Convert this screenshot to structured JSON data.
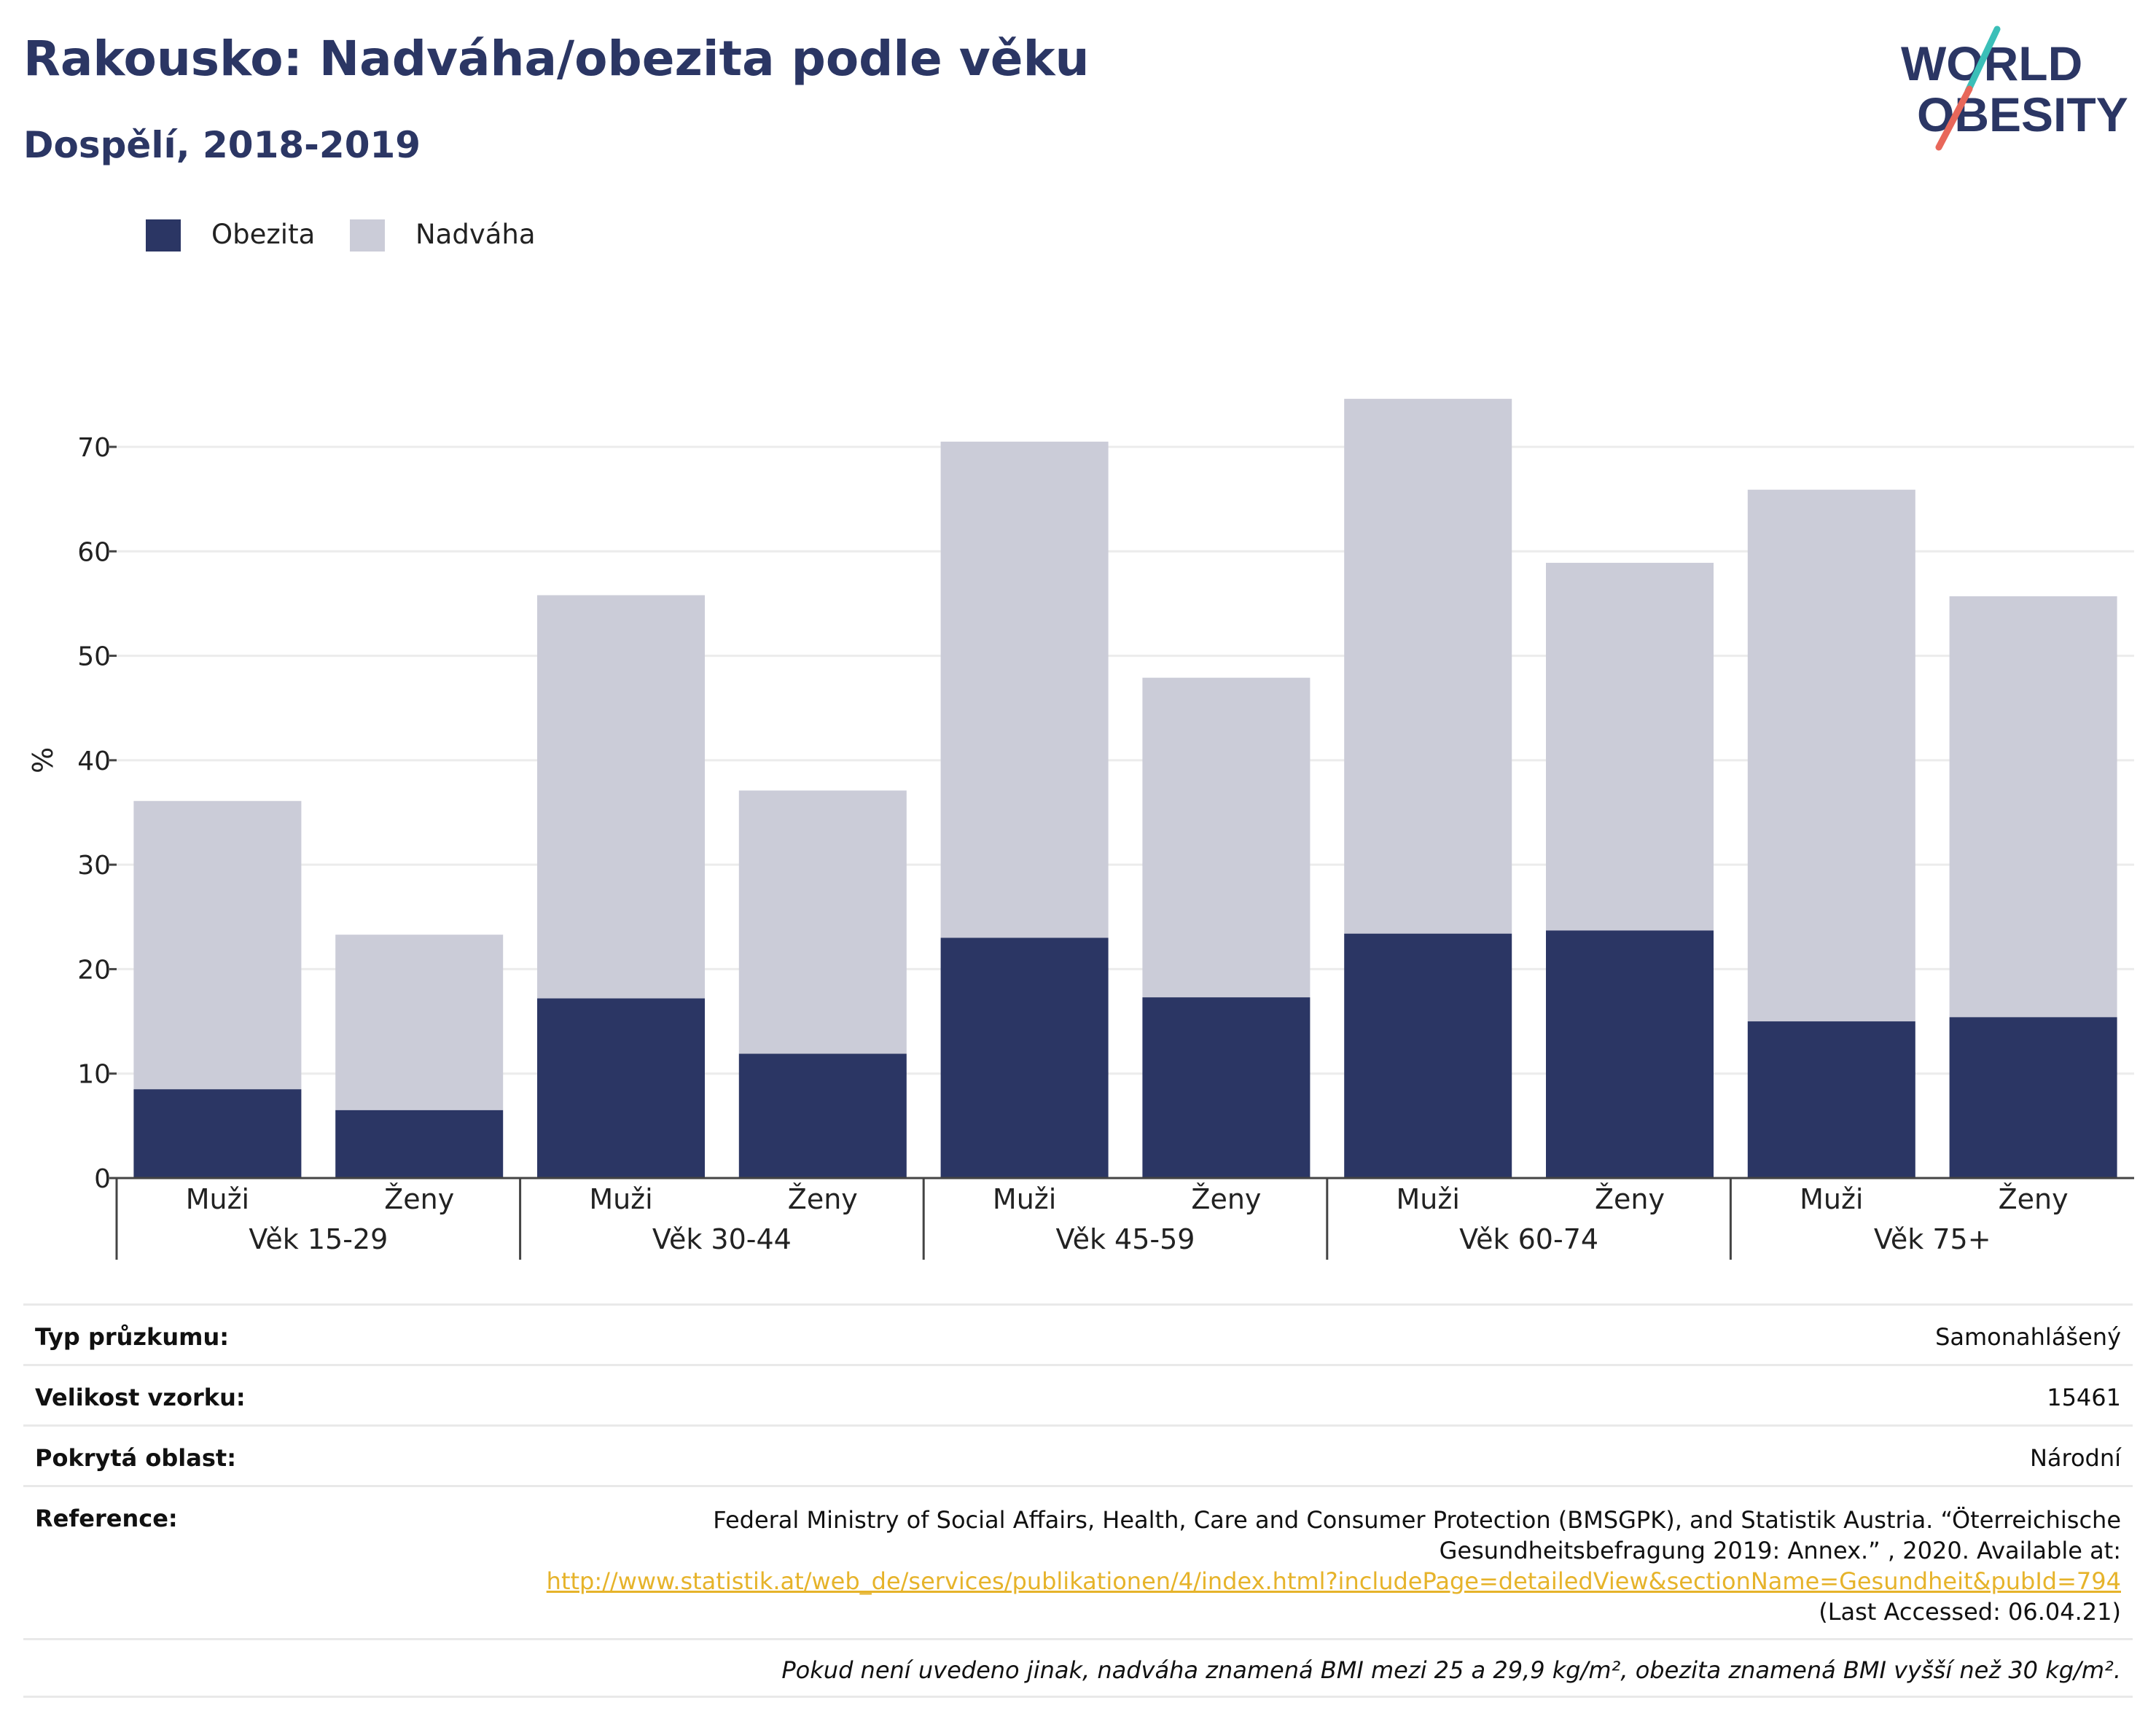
{
  "header": {
    "title": "Rakousko: Nadváha/obezita podle věku",
    "subtitle": "Dospělí, 2018-2019"
  },
  "logo": {
    "line1": "WORLD",
    "line2": "OBESITY",
    "icon": "world-obesity-logo"
  },
  "legend": [
    {
      "label": "Obezita",
      "color": "#2b3664"
    },
    {
      "label": "Nadváha",
      "color": "#cbccd8"
    }
  ],
  "chart_data": {
    "type": "bar",
    "stacked": true,
    "ylabel": "%",
    "xlabel": "",
    "ylim": [
      0,
      80
    ],
    "yticks": [
      0,
      10,
      20,
      30,
      40,
      50,
      60,
      70
    ],
    "grid": true,
    "legend_position": "top-left",
    "groups": [
      "Věk 15-29",
      "Věk 30-44",
      "Věk 45-59",
      "Věk 60-74",
      "Věk 75+"
    ],
    "categories": [
      "Muži",
      "Ženy",
      "Muži",
      "Ženy",
      "Muži",
      "Ženy",
      "Muži",
      "Ženy",
      "Muži",
      "Ženy"
    ],
    "series": [
      {
        "name": "Obezita",
        "color": "#2b3664",
        "values": [
          8.5,
          6.5,
          17.2,
          11.9,
          23.0,
          17.3,
          23.4,
          23.7,
          15.0,
          15.4
        ]
      },
      {
        "name": "Nadváha",
        "color": "#cbccd8",
        "values": [
          27.6,
          16.8,
          38.6,
          25.2,
          47.5,
          30.6,
          51.2,
          35.2,
          50.9,
          40.3
        ]
      }
    ]
  },
  "info": {
    "survey_type": {
      "label": "Typ průzkumu:",
      "value": "Samonahlášený"
    },
    "sample_size": {
      "label": "Velikost vzorku:",
      "value": "15461"
    },
    "area": {
      "label": "Pokrytá oblast:",
      "value": "Národní"
    },
    "reference": {
      "label": "Reference:",
      "line1": "Federal Ministry of Social Affairs, Health, Care and Consumer Protection (BMSGPK), and Statistik Austria. “Öterreichische",
      "line2": "Gesundheitsbefragung 2019: Annex.” , 2020. Available at:",
      "link": "http://www.statistik.at/web_de/services/publikationen/4/index.html?includePage=detailedView&sectionName=Gesundheit&pubId=794",
      "accessed": "(Last Accessed: 06.04.21)"
    },
    "note": "Pokud není uvedeno jinak, nadváha znamená BMI mezi 25 a 29,9 kg/m², obezita znamená BMI vyšší než 30 kg/m²."
  }
}
